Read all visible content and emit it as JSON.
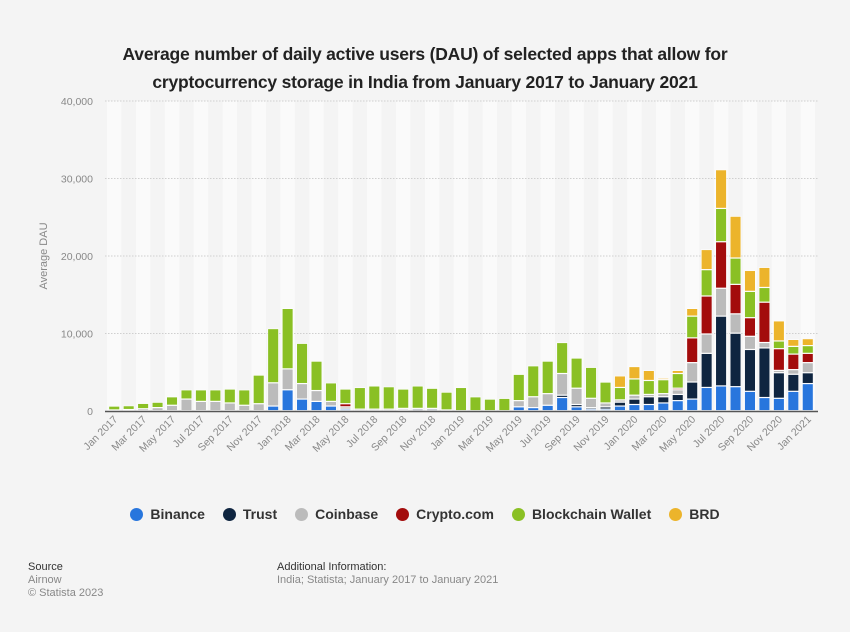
{
  "chart_data": {
    "type": "bar",
    "stacked": true,
    "title": "Average number of daily active users (DAU) of selected apps that allow for cryptocurrency storage in India from January 2017 to January 2021",
    "title_lines": [
      "Average number of daily active users (DAU) of selected apps that allow for",
      "cryptocurrency storage in India from January 2017 to January 2021"
    ],
    "xlabel": "",
    "ylabel": "Average DAU",
    "ylim": [
      0,
      40000
    ],
    "yticks": [
      0,
      10000,
      20000,
      30000,
      40000
    ],
    "ytick_labels": [
      "0",
      "10,000",
      "20,000",
      "30,000",
      "40,000"
    ],
    "grid": true,
    "legend_position": "bottom",
    "categories": [
      "Jan 2017",
      "Feb 2017",
      "Mar 2017",
      "Apr 2017",
      "May 2017",
      "Jun 2017",
      "Jul 2017",
      "Aug 2017",
      "Sep 2017",
      "Oct 2017",
      "Nov 2017",
      "Dec 2017",
      "Jan 2018",
      "Feb 2018",
      "Mar 2018",
      "Apr 2018",
      "May 2018",
      "Jun 2018",
      "Jul 2018",
      "Aug 2018",
      "Sep 2018",
      "Oct 2018",
      "Nov 2018",
      "Dec 2018",
      "Jan 2019",
      "Feb 2019",
      "Mar 2019",
      "Apr 2019",
      "May 2019",
      "Jun 2019",
      "Jul 2019",
      "Aug 2019",
      "Sep 2019",
      "Oct 2019",
      "Nov 2019",
      "Dec 2019",
      "Jan 2020",
      "Feb 2020",
      "Mar 2020",
      "Apr 2020",
      "May 2020",
      "Jun 2020",
      "Jul 2020",
      "Aug 2020",
      "Sep 2020",
      "Oct 2020",
      "Nov 2020",
      "Dec 2020",
      "Jan 2021"
    ],
    "xtick_labels": [
      "Jan 2017",
      "Mar 2017",
      "May 2017",
      "Jul 2017",
      "Sep 2017",
      "Nov 2017",
      "Jan 2018",
      "Mar 2018",
      "May 2018",
      "Jul 2018",
      "Sep 2018",
      "Nov 2018",
      "Jan 2019",
      "Mar 2019",
      "May 2019",
      "Jul 2019",
      "Sep 2019",
      "Nov 2019",
      "Jan 2020",
      "Mar 2020",
      "May 2020",
      "Jul 2020",
      "Sep 2020",
      "Nov 2020",
      "Jan 2021"
    ],
    "series": [
      {
        "name": "Binance",
        "color": "#2876dd",
        "values": [
          0,
          0,
          0,
          0,
          0,
          0,
          0,
          0,
          0,
          0,
          0,
          600,
          2700,
          1500,
          1200,
          600,
          200,
          0,
          0,
          0,
          0,
          0,
          0,
          0,
          0,
          0,
          0,
          0,
          500,
          400,
          700,
          1700,
          500,
          200,
          200,
          600,
          800,
          800,
          1000,
          1300,
          1500,
          3000,
          3200,
          3100,
          2500,
          1700,
          1600,
          2500,
          3500
        ]
      },
      {
        "name": "Trust",
        "color": "#0f2540",
        "values": [
          0,
          0,
          0,
          0,
          0,
          0,
          0,
          0,
          0,
          0,
          0,
          0,
          0,
          0,
          0,
          0,
          0,
          0,
          0,
          0,
          100,
          200,
          200,
          0,
          0,
          0,
          0,
          0,
          0,
          0,
          0,
          300,
          300,
          200,
          300,
          500,
          700,
          1000,
          800,
          800,
          2200,
          4400,
          9000,
          6900,
          5400,
          6400,
          3300,
          2200,
          1400
        ]
      },
      {
        "name": "Coinbase",
        "color": "#bbbbbb",
        "values": [
          100,
          150,
          250,
          400,
          700,
          1500,
          1200,
          1200,
          1000,
          700,
          900,
          3000,
          2700,
          2000,
          1400,
          600,
          300,
          200,
          200,
          200,
          200,
          100,
          100,
          100,
          0,
          0,
          0,
          0,
          800,
          1400,
          1500,
          2800,
          2100,
          1200,
          500,
          300,
          500,
          300,
          400,
          600,
          2500,
          2500,
          3600,
          2500,
          1700,
          700,
          300,
          600,
          1300
        ]
      },
      {
        "name": "Crypto.com",
        "color": "#a30c0c",
        "values": [
          0,
          0,
          0,
          0,
          0,
          0,
          0,
          0,
          0,
          0,
          0,
          0,
          0,
          0,
          0,
          0,
          400,
          0,
          0,
          0,
          0,
          0,
          0,
          0,
          0,
          0,
          0,
          0,
          0,
          0,
          0,
          0,
          0,
          0,
          0,
          0,
          0,
          0,
          0,
          200,
          3200,
          4900,
          6000,
          3800,
          2400,
          5200,
          2800,
          2000,
          1200
        ]
      },
      {
        "name": "Blockchain Wallet",
        "color": "#8ac024",
        "values": [
          500,
          500,
          700,
          700,
          1100,
          1200,
          1500,
          1500,
          1800,
          2000,
          3700,
          7000,
          7800,
          5200,
          3800,
          2400,
          1900,
          2800,
          3000,
          2900,
          2500,
          2900,
          2600,
          2300,
          3000,
          1800,
          1500,
          1600,
          3400,
          4000,
          4200,
          4000,
          3900,
          4000,
          2700,
          1600,
          2100,
          1800,
          1800,
          1900,
          2800,
          3400,
          4300,
          3400,
          3400,
          1900,
          1000,
          1000,
          1000
        ]
      },
      {
        "name": "BRD",
        "color": "#ecb42b",
        "values": [
          0,
          0,
          0,
          0,
          0,
          0,
          0,
          0,
          0,
          0,
          0,
          0,
          0,
          0,
          0,
          0,
          0,
          0,
          0,
          0,
          0,
          0,
          0,
          0,
          0,
          0,
          0,
          0,
          0,
          0,
          0,
          0,
          0,
          0,
          0,
          1500,
          1600,
          1300,
          200,
          400,
          1000,
          2600,
          5000,
          5400,
          2700,
          2600,
          2600,
          900,
          900
        ]
      }
    ]
  },
  "legend": {
    "items": [
      {
        "label": "Binance",
        "color": "#2876dd"
      },
      {
        "label": "Trust",
        "color": "#0f2540"
      },
      {
        "label": "Coinbase",
        "color": "#bbbbbb"
      },
      {
        "label": "Crypto.com",
        "color": "#a30c0c"
      },
      {
        "label": "Blockchain Wallet",
        "color": "#8ac024"
      },
      {
        "label": "BRD",
        "color": "#ecb42b"
      }
    ]
  },
  "footer": {
    "source_heading": "Source",
    "source_value": "Airnow",
    "copyright": "© Statista 2023",
    "additional_heading": "Additional Information:",
    "additional_value": "India; Statista; January 2017 to January 2021"
  }
}
